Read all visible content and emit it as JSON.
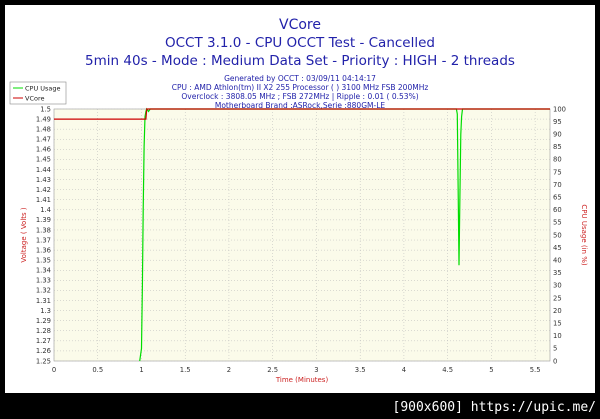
{
  "chart_data": {
    "type": "line",
    "title": "VCore",
    "subtitle1": "OCCT 3.1.0 - CPU OCCT Test - Cancelled",
    "subtitle2": "5min 40s - Mode : Medium Data Set - Priority : HIGH - 2 threads",
    "info": [
      "Generated by OCCT : 03/09/11 04:14:17",
      "CPU : AMD Athlon(tm) II X2 255 Processor (  ) 3100 MHz FSB 200MHz",
      "Overclock : 3808.05 MHz ; FSB 272MHz | Ripple : 0.01 ( 0.53%)",
      "Motherboard Brand :ASRock,Serie :880GM-LE"
    ],
    "xlabel": "Time (Minutes)",
    "ylabel": "Voltage ( Volts )",
    "y2label": "CPU Usage (in %)",
    "xlim": [
      0,
      5.67
    ],
    "ylim": [
      1.25,
      1.5
    ],
    "y2lim": [
      0,
      100
    ],
    "x_ticks": [
      "0",
      "0.5",
      "1",
      "1.5",
      "2",
      "2.5",
      "3",
      "3.5",
      "4",
      "4.5",
      "5",
      "5.5"
    ],
    "y_ticks": [
      "1.25",
      "1.26",
      "1.27",
      "1.28",
      "1.29",
      "1.3",
      "1.31",
      "1.32",
      "1.33",
      "1.34",
      "1.35",
      "1.36",
      "1.37",
      "1.38",
      "1.39",
      "1.4",
      "1.41",
      "1.42",
      "1.43",
      "1.44",
      "1.45",
      "1.46",
      "1.47",
      "1.48",
      "1.49",
      "1.5"
    ],
    "y2_ticks": [
      "0",
      "5",
      "10",
      "15",
      "20",
      "25",
      "30",
      "35",
      "40",
      "45",
      "50",
      "55",
      "60",
      "65",
      "70",
      "75",
      "80",
      "85",
      "90",
      "95",
      "100"
    ],
    "legend_placement": "top-left",
    "grid": true,
    "series": [
      {
        "name": "CPU Usage",
        "axis": "right",
        "color": "#00dd00",
        "x": [
          0.98,
          1.0,
          1.01,
          1.02,
          1.03,
          1.04,
          1.05,
          1.06,
          1.08,
          1.1,
          1.2,
          1.5,
          2.0,
          2.5,
          3.0,
          3.5,
          4.0,
          4.5,
          4.6,
          4.61,
          4.62,
          4.63,
          4.64,
          4.65,
          4.66,
          4.67,
          4.7,
          5.0,
          5.5,
          5.67
        ],
        "values": [
          0,
          5,
          30,
          60,
          85,
          97,
          99,
          100,
          99,
          100,
          100,
          100,
          100,
          100,
          100,
          100,
          100,
          100,
          100,
          98,
          70,
          38,
          65,
          90,
          97,
          100,
          100,
          100,
          100,
          100
        ]
      },
      {
        "name": "VCore",
        "axis": "left",
        "color": "#cc0000",
        "x": [
          0,
          1.0,
          1.05,
          1.06,
          1.1,
          1.5,
          2.0,
          2.5,
          3.0,
          3.5,
          4.0,
          4.5,
          5.0,
          5.5,
          5.67
        ],
        "values": [
          1.49,
          1.49,
          1.49,
          1.5,
          1.5,
          1.5,
          1.5,
          1.5,
          1.5,
          1.5,
          1.5,
          1.5,
          1.5,
          1.5,
          1.5
        ]
      }
    ]
  },
  "watermark": "[900x600] https://upic.me/"
}
